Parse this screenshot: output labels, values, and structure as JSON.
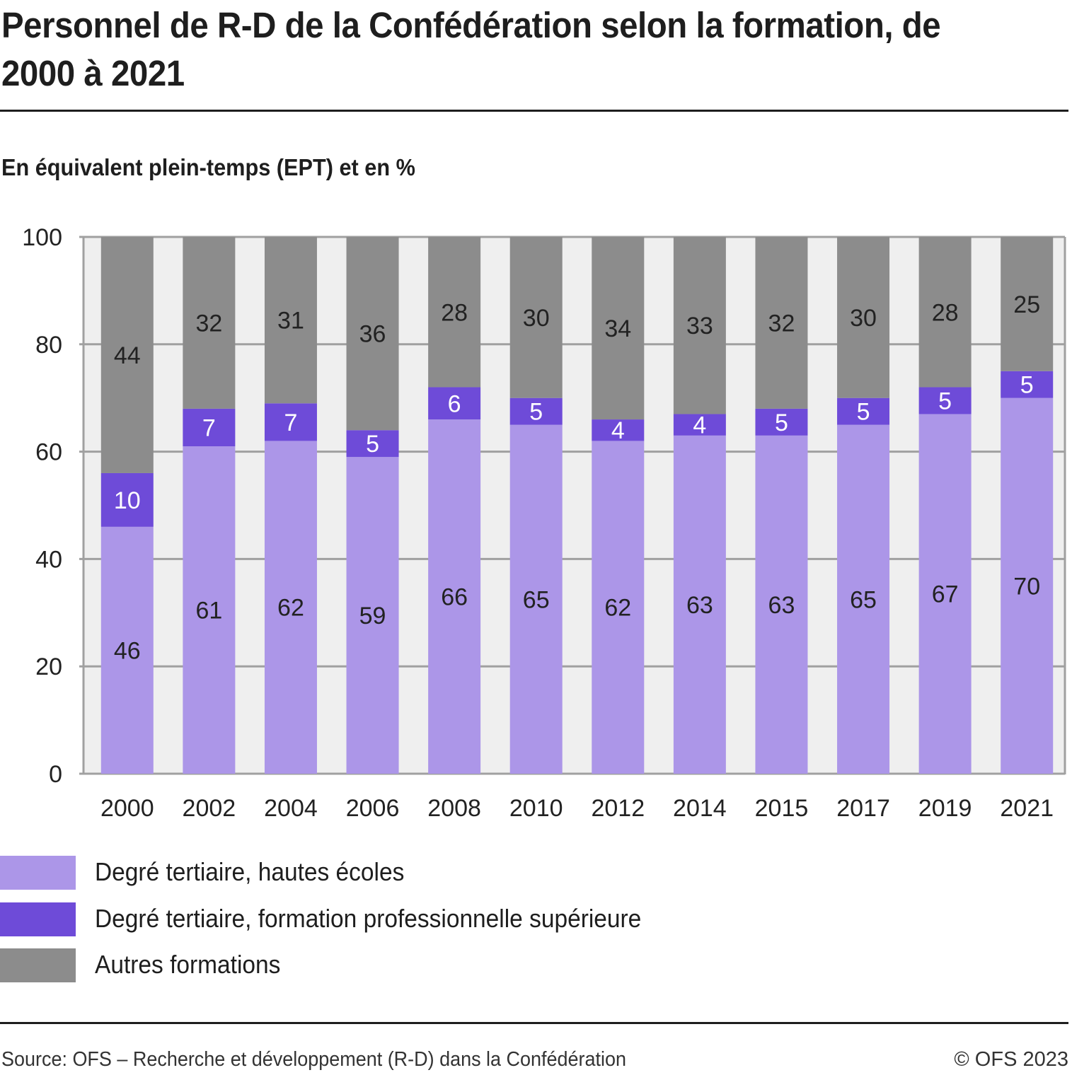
{
  "title": "Personnel de R-D de la Confédération selon la formation, de 2000 à 2021",
  "subtitle": "En équivalent plein-temps (EPT) et en %",
  "footer": {
    "source": "Source: OFS – Recherche et développement (R-D) dans la Confédération",
    "copyright": "© OFS 2023"
  },
  "colors": {
    "plot_background": "#efefef",
    "grid": "#a0a0a0",
    "axis_text": "#222222"
  },
  "chart_data": {
    "type": "bar",
    "stacked": true,
    "title": "Personnel de R-D de la Confédération selon la formation, de 2000 à 2021",
    "subtitle": "En équivalent plein-temps (EPT) et en %",
    "xlabel": "",
    "ylabel": "",
    "ylim": [
      0,
      100
    ],
    "yticks": [
      0,
      20,
      40,
      60,
      80,
      100
    ],
    "grid": true,
    "legend_position": "bottom-left",
    "categories": [
      "2000",
      "2002",
      "2004",
      "2006",
      "2008",
      "2010",
      "2012",
      "2014",
      "2015",
      "2017",
      "2019",
      "2021"
    ],
    "series": [
      {
        "name": "Degré tertiaire, hautes écoles",
        "color": "#ac96e8",
        "label_color": "#222222",
        "values": [
          46,
          61,
          62,
          59,
          66,
          65,
          62,
          63,
          63,
          65,
          67,
          70
        ]
      },
      {
        "name": "Degré tertiaire, formation professionnelle supérieure",
        "color": "#6e4bd8",
        "label_color": "#ffffff",
        "values": [
          10,
          7,
          7,
          5,
          6,
          5,
          4,
          4,
          5,
          5,
          5,
          5
        ]
      },
      {
        "name": "Autres formations",
        "color": "#8c8c8c",
        "label_color": "#222222",
        "values": [
          44,
          32,
          31,
          36,
          28,
          30,
          34,
          33,
          32,
          30,
          28,
          25
        ]
      }
    ]
  }
}
